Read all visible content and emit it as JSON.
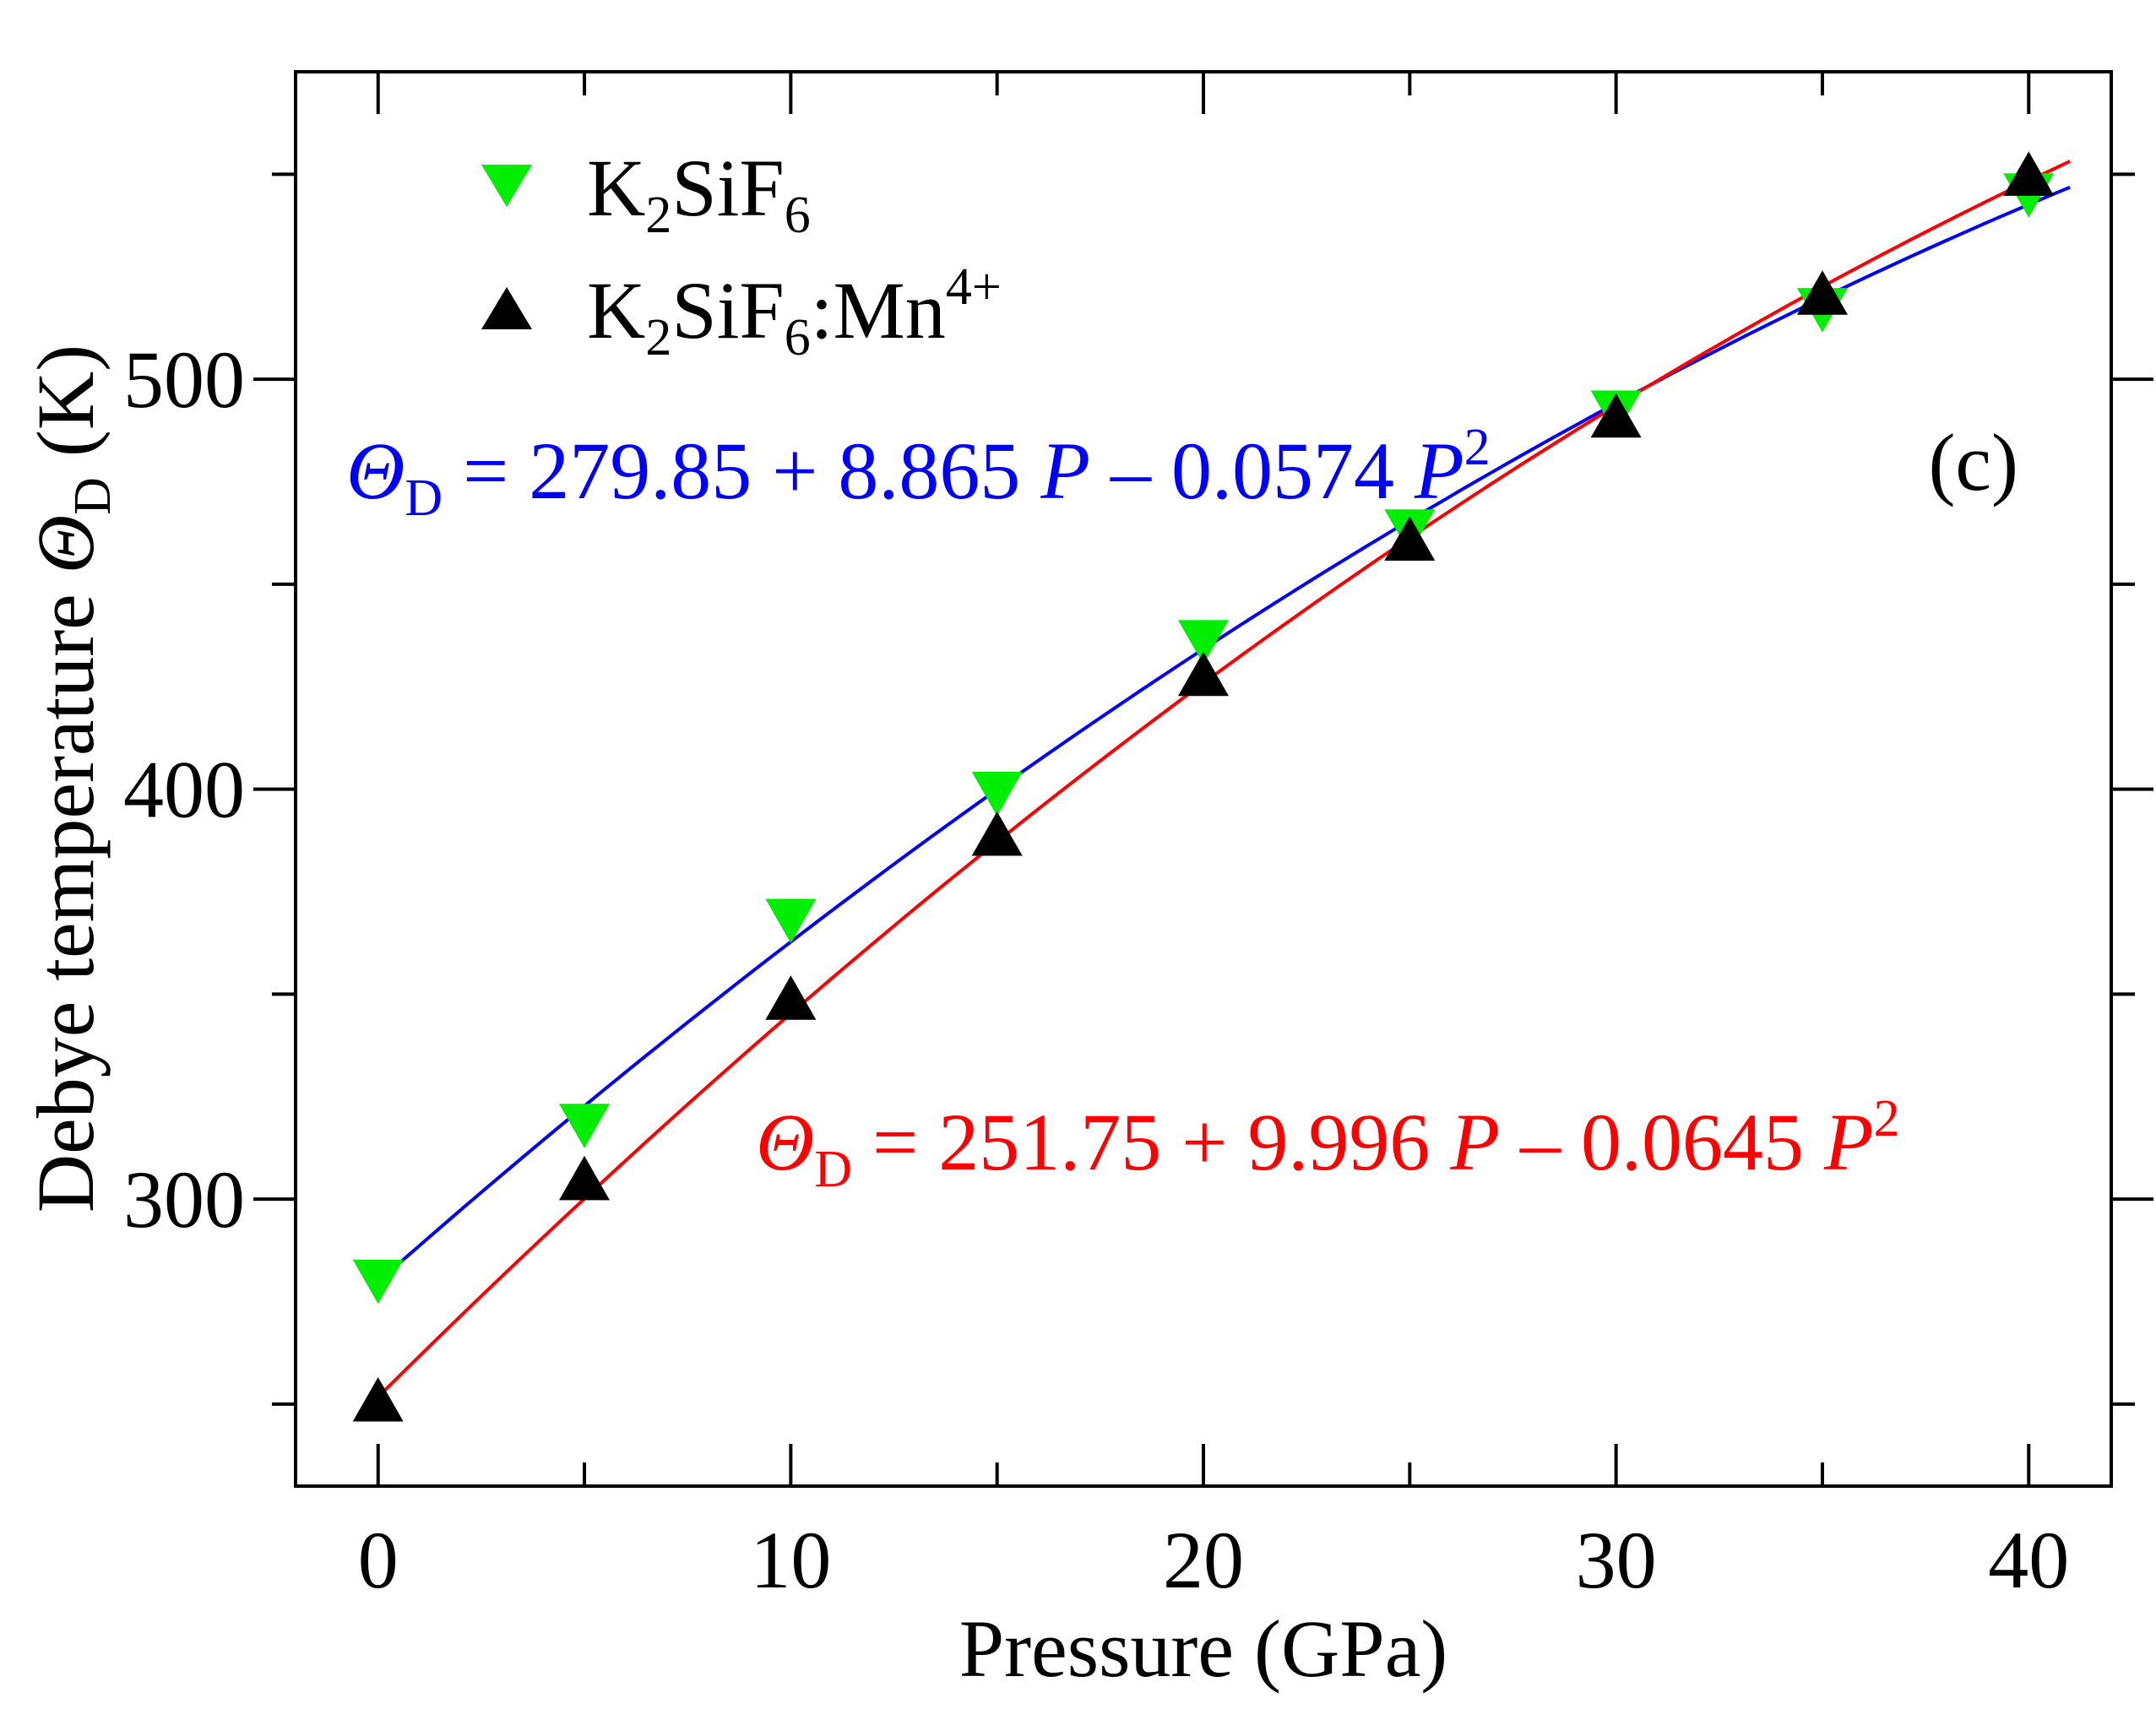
{
  "chart_data": {
    "type": "scatter",
    "panel_label": "(c)",
    "xlabel": "Pressure (GPa)",
    "ylabel": {
      "prefix": "Debye temperature ",
      "symbol": "Θ",
      "subscript": "D",
      "suffix": " (K)"
    },
    "xlim": [
      -2,
      42
    ],
    "ylim": [
      230,
      575
    ],
    "xticks": [
      0,
      10,
      20,
      30,
      40
    ],
    "yticks": [
      300,
      400,
      500
    ],
    "x_minor_ticks": [
      5,
      15,
      25,
      35
    ],
    "y_minor_ticks": [
      250,
      350,
      450,
      550
    ],
    "grid": false,
    "legend_position": "top-left",
    "series": [
      {
        "name": "K2SiF6",
        "legend": {
          "parts": [
            "K",
            "2",
            "SiF",
            "6"
          ],
          "sup": ""
        },
        "marker": "triangle-down",
        "color": "#00ee00",
        "x": [
          0,
          5,
          10,
          15,
          20,
          25,
          30,
          35,
          40
        ],
        "y": [
          280,
          318,
          368,
          399,
          436,
          463,
          492,
          517,
          545
        ]
      },
      {
        "name": "K2SiF6:Mn4+",
        "legend": {
          "parts": [
            "K",
            "2",
            "SiF",
            "6"
          ],
          "tail": ":Mn",
          "sup": "4+"
        },
        "marker": "triangle-up",
        "color": "#000000",
        "x": [
          0,
          5,
          10,
          15,
          20,
          25,
          30,
          35,
          40
        ],
        "y": [
          251,
          305,
          349,
          389,
          428,
          461,
          491,
          521,
          550
        ]
      }
    ],
    "fits": [
      {
        "color": "#0000ff",
        "coeffs": [
          279.85,
          8.865,
          -0.0574
        ],
        "x_range": [
          0,
          41
        ],
        "equation": {
          "symbol": "Θ",
          "subscript": "D",
          "body": " = 279.85 + 8.865 ",
          "p1": "P",
          "mid": " – 0.0574 ",
          "p2": "P",
          "exp": "2"
        }
      },
      {
        "color": "#ff0000",
        "coeffs": [
          251.75,
          9.996,
          -0.0645
        ],
        "x_range": [
          0,
          41
        ],
        "equation": {
          "symbol": "Θ",
          "subscript": "D",
          "body": " = 251.75 + 9.996 ",
          "p1": "P",
          "mid": " – 0.0645 ",
          "p2": "P",
          "exp": "2"
        }
      }
    ]
  }
}
